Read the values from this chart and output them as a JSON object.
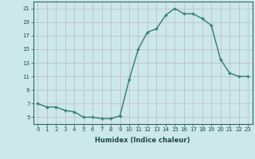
{
  "x": [
    0,
    1,
    2,
    3,
    4,
    5,
    6,
    7,
    8,
    9,
    10,
    11,
    12,
    13,
    14,
    15,
    16,
    17,
    18,
    19,
    20,
    21,
    22,
    23
  ],
  "y": [
    7,
    6.5,
    6.5,
    6,
    5.8,
    5,
    5,
    4.8,
    4.8,
    5.2,
    10.5,
    15,
    17.5,
    18,
    20,
    21,
    20.2,
    20.2,
    19.5,
    18.5,
    13.5,
    11.5,
    11,
    11
  ],
  "line_color": "#2e7d6e",
  "marker": "+",
  "marker_size": 3.5,
  "bg_color": "#cce8e8",
  "grid_color": "#c0b8c8",
  "xlabel": "Humidex (Indice chaleur)",
  "ylim": [
    4,
    22
  ],
  "xlim": [
    -0.5,
    23.5
  ],
  "yticks": [
    5,
    7,
    9,
    11,
    13,
    15,
    17,
    19,
    21
  ],
  "xticks": [
    0,
    1,
    2,
    3,
    4,
    5,
    6,
    7,
    8,
    9,
    10,
    11,
    12,
    13,
    14,
    15,
    16,
    17,
    18,
    19,
    20,
    21,
    22,
    23
  ],
  "tick_fontsize": 5.0,
  "xlabel_fontsize": 6.0,
  "linewidth": 1.0,
  "marker_linewidth": 1.0
}
